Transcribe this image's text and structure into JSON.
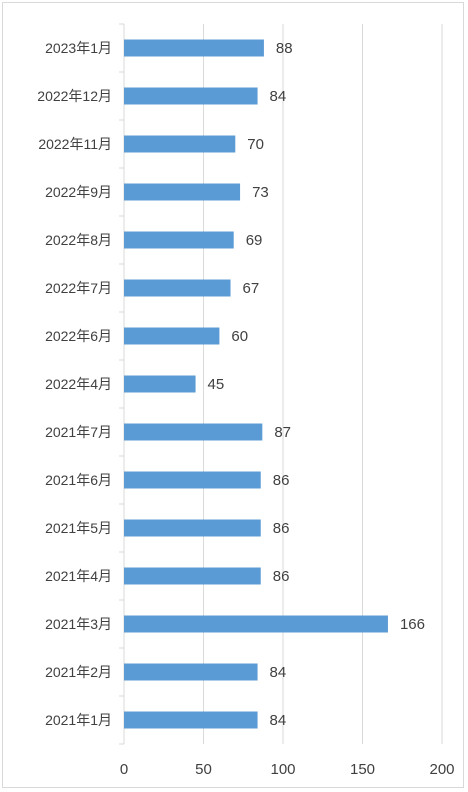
{
  "chart_data": {
    "type": "bar",
    "orientation": "horizontal",
    "categories": [
      "2023年1月",
      "2022年12月",
      "2022年11月",
      "2022年9月",
      "2022年8月",
      "2022年7月",
      "2022年6月",
      "2022年4月",
      "2021年7月",
      "2021年6月",
      "2021年5月",
      "2021年4月",
      "2021年3月",
      "2021年2月",
      "2021年1月"
    ],
    "values": [
      88,
      84,
      70,
      73,
      69,
      67,
      60,
      45,
      87,
      86,
      86,
      86,
      166,
      84,
      84
    ],
    "xlim": [
      0,
      200
    ],
    "xticks": [
      0,
      50,
      100,
      150,
      200
    ],
    "grid": true,
    "legend": "none",
    "data_labels": true,
    "bar_color": "#5b9bd5",
    "grid_color": "#d9d9d9",
    "text_color": "#404040"
  }
}
